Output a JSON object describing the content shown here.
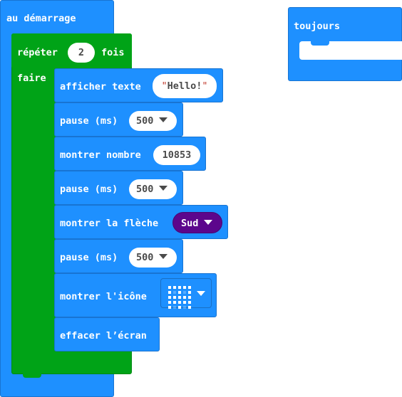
{
  "on_start": {
    "label": "au démarrage"
  },
  "repeat": {
    "label_before": "répéter",
    "count": "2",
    "label_after": "fois",
    "do_label": "faire"
  },
  "show_string": {
    "label": "afficher texte",
    "open_quote": "\"",
    "value": "Hello!",
    "close_quote": "\""
  },
  "pause_1": {
    "label": "pause (ms)",
    "value": "500"
  },
  "show_number": {
    "label": "montrer nombre",
    "value": "10853"
  },
  "pause_2": {
    "label": "pause (ms)",
    "value": "500"
  },
  "show_arrow": {
    "label": "montrer la flèche",
    "value": "Sud",
    "color": "#5c068c"
  },
  "pause_3": {
    "label": "pause (ms)",
    "value": "500"
  },
  "show_icon": {
    "label": "montrer l'icône",
    "icon": "ghost-icon"
  },
  "clear_screen": {
    "label": "effacer l’écran"
  },
  "forever": {
    "label": "toujours"
  },
  "colors": {
    "basic": "#1e90ff",
    "loops": "#00a317",
    "arrow": "#5c068c"
  }
}
